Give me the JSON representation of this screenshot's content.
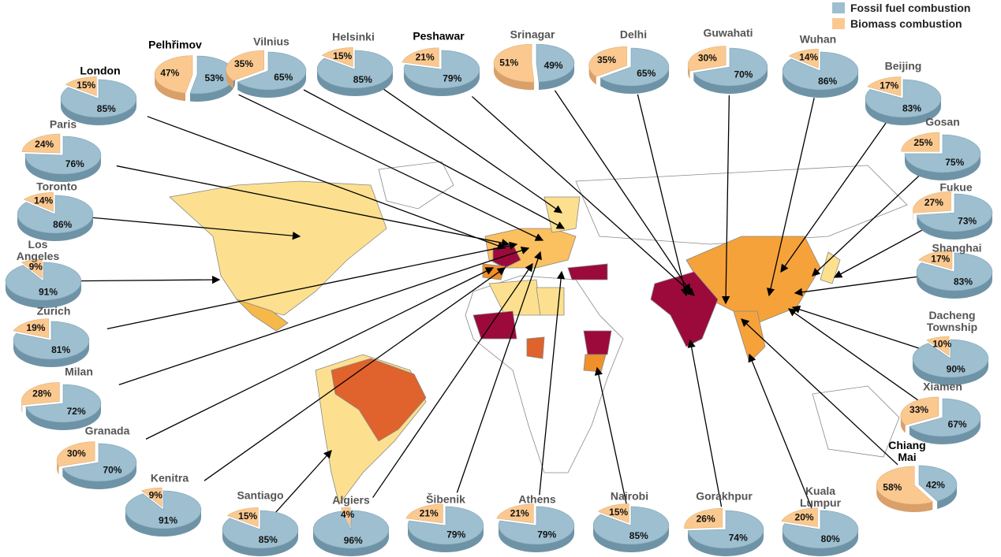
{
  "legend": [
    {
      "label": "Fossil fuel combustion",
      "color": "#9dbfd0"
    },
    {
      "label": "Biomass combustion",
      "color": "#fbc98f"
    }
  ],
  "cities": [
    {
      "name": "London",
      "fossil_value": 85,
      "fossil_label": "85%",
      "biomass_value": 15,
      "biomass_label": "15%"
    },
    {
      "name": "Pelhřimov",
      "fossil_value": 53,
      "fossil_label": "53%",
      "biomass_value": 47,
      "biomass_label": "47%"
    },
    {
      "name": "Vilnius",
      "fossil_value": 65,
      "fossil_label": "65%",
      "biomass_value": 35,
      "biomass_label": "35%"
    },
    {
      "name": "Helsinki",
      "fossil_value": 85,
      "fossil_label": "85%",
      "biomass_value": 15,
      "biomass_label": "15%"
    },
    {
      "name": "Peshawar",
      "fossil_value": 79,
      "fossil_label": "79%",
      "biomass_value": 21,
      "biomass_label": "21%"
    },
    {
      "name": "Srinagar",
      "fossil_value": 49,
      "fossil_label": "49%",
      "biomass_value": 51,
      "biomass_label": "51%"
    },
    {
      "name": "Delhi",
      "fossil_value": 65,
      "fossil_label": "65%",
      "biomass_value": 35,
      "biomass_label": "35%"
    },
    {
      "name": "Guwahati",
      "fossil_value": 70,
      "fossil_label": "70%",
      "biomass_value": 30,
      "biomass_label": "30%"
    },
    {
      "name": "Wuhan",
      "fossil_value": 86,
      "fossil_label": "86%",
      "biomass_value": 14,
      "biomass_label": "14%"
    },
    {
      "name": "Beijing",
      "fossil_value": 83,
      "fossil_label": "83%",
      "biomass_value": 17,
      "biomass_label": "17%"
    },
    {
      "name": "Gosan",
      "fossil_value": 75,
      "fossil_label": "75%",
      "biomass_value": 25,
      "biomass_label": "25%"
    },
    {
      "name": "Fukue",
      "fossil_value": 73,
      "fossil_label": "73%",
      "biomass_value": 27,
      "biomass_label": "27%"
    },
    {
      "name": "Shanghai",
      "fossil_value": 83,
      "fossil_label": "83%",
      "biomass_value": 17,
      "biomass_label": "17%"
    },
    {
      "name": "Dacheng Township",
      "fossil_value": 90,
      "fossil_label": "90%",
      "biomass_value": 10,
      "biomass_label": "10%"
    },
    {
      "name": "Xiamen",
      "fossil_value": 67,
      "fossil_label": "67%",
      "biomass_value": 33,
      "biomass_label": "33%"
    },
    {
      "name": "Chiang Mai",
      "fossil_value": 42,
      "fossil_label": "42%",
      "biomass_value": 58,
      "biomass_label": "58%"
    },
    {
      "name": "Kuala Lumpur",
      "fossil_value": 80,
      "fossil_label": "80%",
      "biomass_value": 20,
      "biomass_label": "20%"
    },
    {
      "name": "Gorakhpur",
      "fossil_value": 74,
      "fossil_label": "74%",
      "biomass_value": 26,
      "biomass_label": "26%"
    },
    {
      "name": "Nairobi",
      "fossil_value": 85,
      "fossil_label": "85%",
      "biomass_value": 15,
      "biomass_label": "15%"
    },
    {
      "name": "Athens",
      "fossil_value": 79,
      "fossil_label": "79%",
      "biomass_value": 21,
      "biomass_label": "21%"
    },
    {
      "name": "Šibenik",
      "fossil_value": 79,
      "fossil_label": "79%",
      "biomass_value": 21,
      "biomass_label": "21%"
    },
    {
      "name": "Algiers",
      "fossil_value": 96,
      "fossil_label": "96%",
      "biomass_value": 4,
      "biomass_label": "4%"
    },
    {
      "name": "Santiago",
      "fossil_value": 85,
      "fossil_label": "85%",
      "biomass_value": 15,
      "biomass_label": "15%"
    },
    {
      "name": "Kenitra",
      "fossil_value": 91,
      "fossil_label": "91%",
      "biomass_value": 9,
      "biomass_label": "9%"
    },
    {
      "name": "Granada",
      "fossil_value": 70,
      "fossil_label": "70%",
      "biomass_value": 30,
      "biomass_label": "30%"
    },
    {
      "name": "Milan",
      "fossil_value": 72,
      "fossil_label": "72%",
      "biomass_value": 28,
      "biomass_label": "28%"
    },
    {
      "name": "Zurich",
      "fossil_value": 81,
      "fossil_label": "81%",
      "biomass_value": 19,
      "biomass_label": "19%"
    },
    {
      "name": "Los Angeles",
      "fossil_value": 91,
      "fossil_label": "91%",
      "biomass_value": 9,
      "biomass_label": "9%"
    },
    {
      "name": "Toronto",
      "fossil_value": 86,
      "fossil_label": "86%",
      "biomass_value": 14,
      "biomass_label": "14%"
    },
    {
      "name": "Paris",
      "fossil_value": 76,
      "fossil_label": "76%",
      "biomass_value": 24,
      "biomass_label": "24%"
    }
  ]
}
